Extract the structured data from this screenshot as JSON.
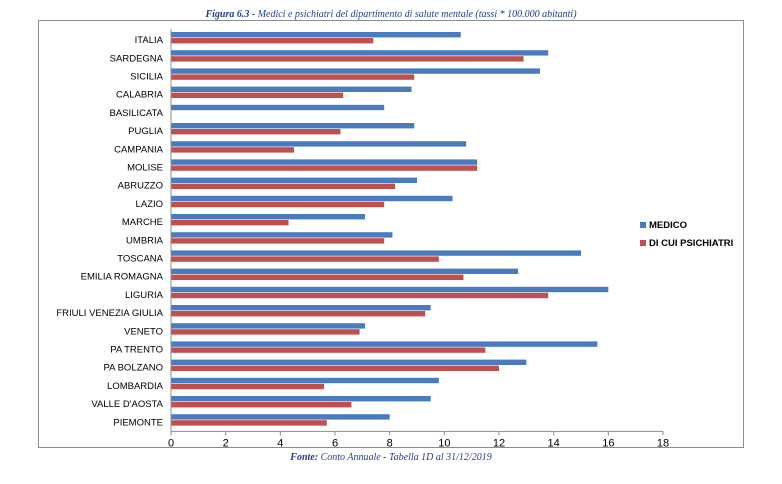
{
  "figure": {
    "label": "Figura 6.3 -",
    "title": "Medici e psichiatri del dipartimento di salute mentale (tassi * 100.000 abitanti)"
  },
  "source": {
    "label": "Fonte:",
    "text": "Conto Annuale - Tabella 1D al 31/12/2019"
  },
  "colors": {
    "medico": "#4a7bbf",
    "psichiatri": "#c0504d",
    "axis": "#8c8c8c"
  },
  "chart_data": {
    "type": "bar",
    "orientation": "horizontal",
    "title": "",
    "xlabel": "",
    "ylabel": "",
    "xlim": [
      0,
      18
    ],
    "xticks": [
      0,
      2,
      4,
      6,
      8,
      10,
      12,
      14,
      16,
      18
    ],
    "grid": false,
    "legend_position": "right",
    "categories": [
      "ITALIA",
      "SARDEGNA",
      "SICILIA",
      "CALABRIA",
      "BASILICATA",
      "PUGLIA",
      "CAMPANIA",
      "MOLISE",
      "ABRUZZO",
      "LAZIO",
      "MARCHE",
      "UMBRIA",
      "TOSCANA",
      "EMILIA ROMAGNA",
      "LIGURIA",
      "FRIULI VENEZIA GIULIA",
      "VENETO",
      "PA TRENTO",
      "PA BOLZANO",
      "LOMBARDIA",
      "VALLE D'AOSTA",
      "PIEMONTE"
    ],
    "series": [
      {
        "name": "MEDICO",
        "values": [
          10.6,
          13.8,
          13.5,
          8.8,
          7.8,
          8.9,
          10.8,
          11.2,
          9.0,
          10.3,
          7.1,
          8.1,
          15.0,
          12.7,
          16.0,
          9.5,
          7.1,
          15.6,
          13.0,
          9.8,
          9.5,
          8.0
        ]
      },
      {
        "name": "DI CUI PSICHIATRI",
        "values": [
          7.4,
          12.9,
          8.9,
          6.3,
          0,
          6.2,
          4.5,
          11.2,
          8.2,
          7.8,
          4.3,
          7.8,
          9.8,
          10.7,
          13.8,
          9.3,
          6.9,
          11.5,
          12.0,
          5.6,
          6.6,
          5.7
        ]
      }
    ]
  }
}
